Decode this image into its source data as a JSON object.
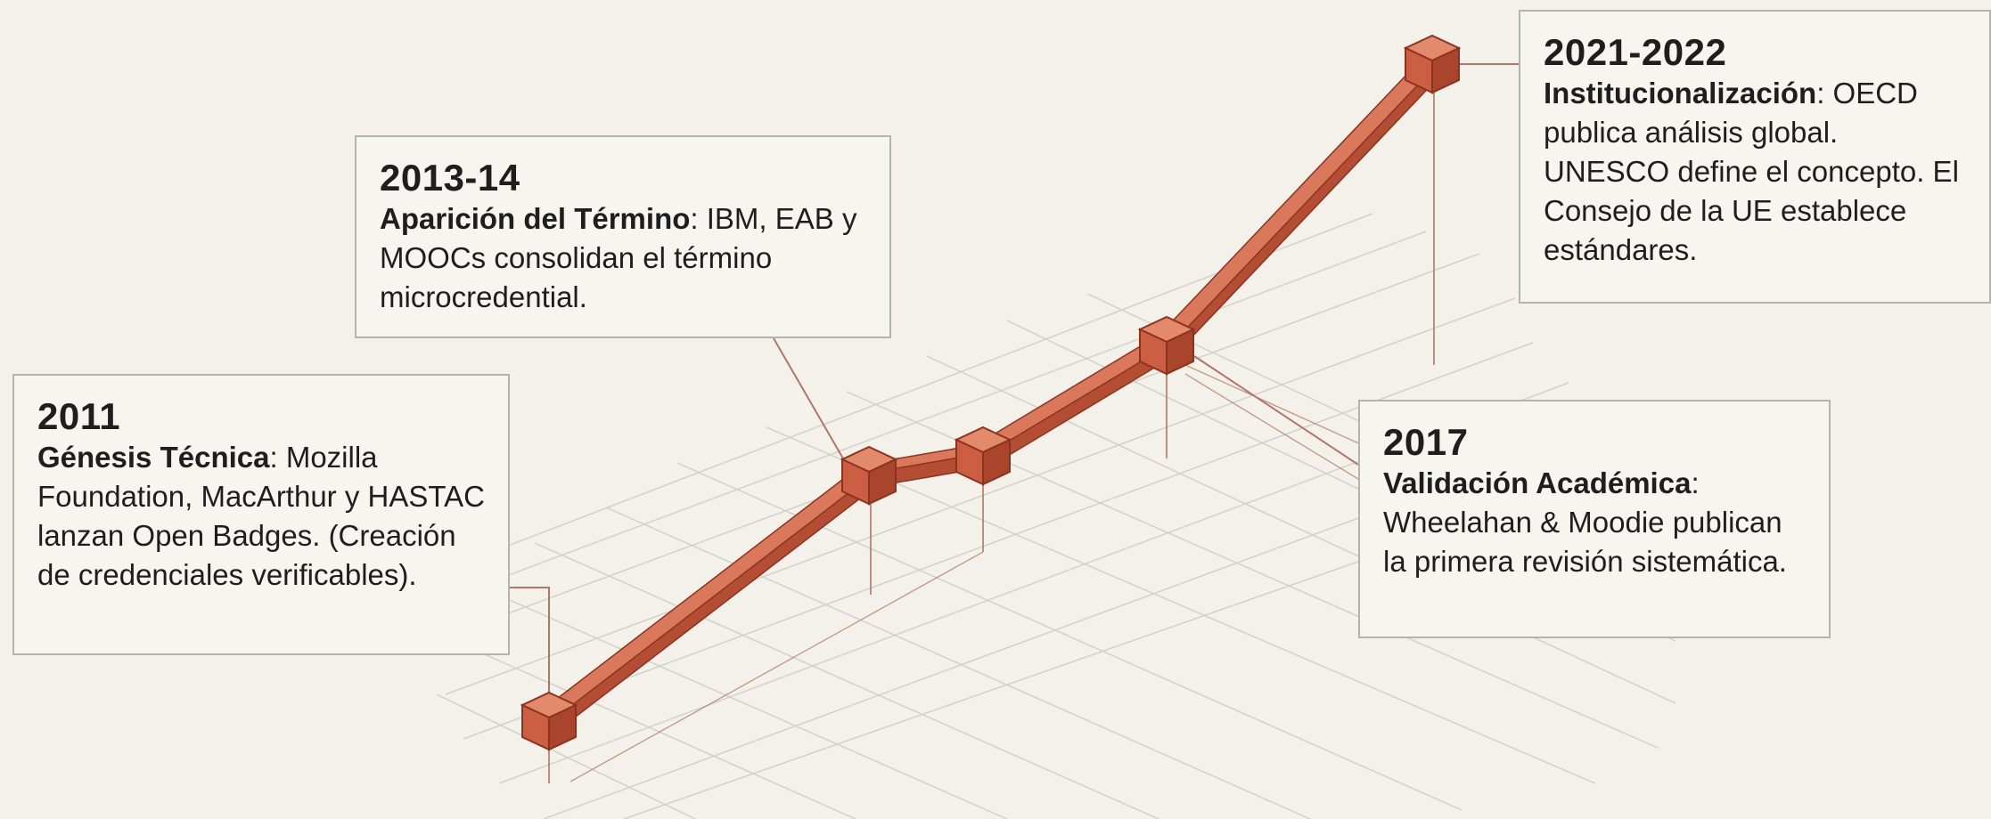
{
  "milestones": [
    {
      "year": "2011",
      "title": "Génesis Técnica",
      "text": "Mozilla Foundation, MacArthur y HASTAC lanzan Open Badges. (Creación de credenciales verificables).",
      "order": 1
    },
    {
      "year": "2013-14",
      "title": "Aparición del Término",
      "text": "IBM, EAB y MOOCs consolidan el término microcredential.",
      "order": 2
    },
    {
      "year": "2017",
      "title": "Validación Académica",
      "text": "Wheelahan & Moodie publican la primera revisión sistemática.",
      "order": 3
    },
    {
      "year": "2021-2022",
      "title": "Institucionalización",
      "text": "OECD publica análisis global. UNESCO define el concepto. El Consejo de la UE establece estándares.",
      "order": 5
    }
  ],
  "colors": {
    "background": "#f3f1ea",
    "path_top": "#d9785b",
    "path_side": "#b34d34",
    "path_edge": "#8c3320",
    "grid": "#d2d0ca",
    "leader": "#b0766a",
    "card_border": "#b5b3ad"
  }
}
